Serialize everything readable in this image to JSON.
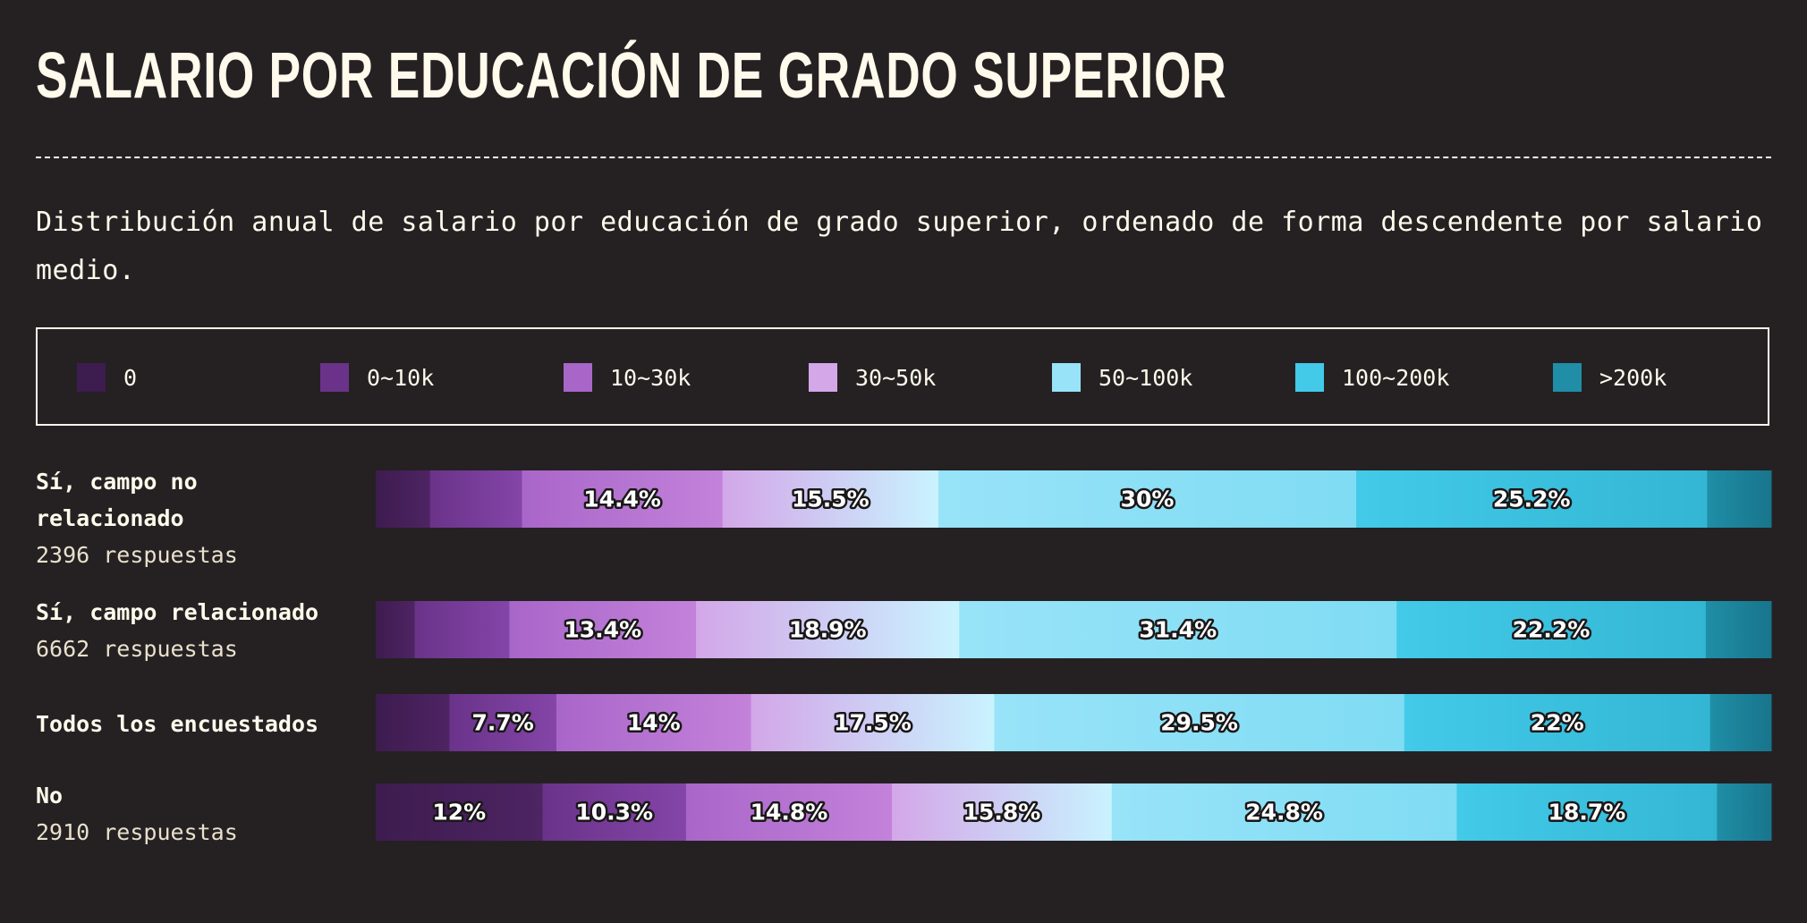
{
  "title": "SALARIO POR EDUCACIÓN DE GRADO SUPERIOR",
  "subtitle": "Distribución anual de salario por educación de grado superior, ordenado de forma descendente por salario medio.",
  "legend": [
    {
      "label": "0",
      "color": "#3d1c4f"
    },
    {
      "label": "0~10k",
      "color": "#6a3389"
    },
    {
      "label": "10~30k",
      "color": "#a966c9"
    },
    {
      "label": "30~50k",
      "color": "#d3a7e8"
    },
    {
      "label": "50~100k",
      "color": "#98e3f8"
    },
    {
      "label": "100~200k",
      "color": "#42cae8"
    },
    {
      "label": ">200k",
      "color": "#1f8ea6"
    }
  ],
  "chart_data": {
    "type": "bar",
    "orientation": "horizontal",
    "stacked": "100%",
    "title": "SALARIO POR EDUCACIÓN DE GRADO SUPERIOR",
    "categories": [
      "0",
      "0~10k",
      "10~30k",
      "30~50k",
      "50~100k",
      "100~200k",
      ">200k"
    ],
    "rows": [
      {
        "name": "Sí, campo no relacionado",
        "count_label": "2396 respuestas",
        "values": [
          3.9,
          6.6,
          14.4,
          15.5,
          30,
          25.2,
          4.6
        ]
      },
      {
        "name": "Sí, campo relacionado",
        "count_label": "6662 respuestas",
        "values": [
          2.8,
          6.8,
          13.4,
          18.9,
          31.4,
          22.2,
          4.7
        ]
      },
      {
        "name": "Todos los encuestados",
        "count_label": "",
        "values": [
          5.3,
          7.7,
          14,
          17.5,
          29.5,
          22,
          4.4
        ]
      },
      {
        "name": "No",
        "count_label": "2910 respuestas",
        "values": [
          12,
          10.3,
          14.8,
          15.8,
          24.8,
          18.7,
          3.9
        ]
      }
    ],
    "label_threshold": 7
  }
}
